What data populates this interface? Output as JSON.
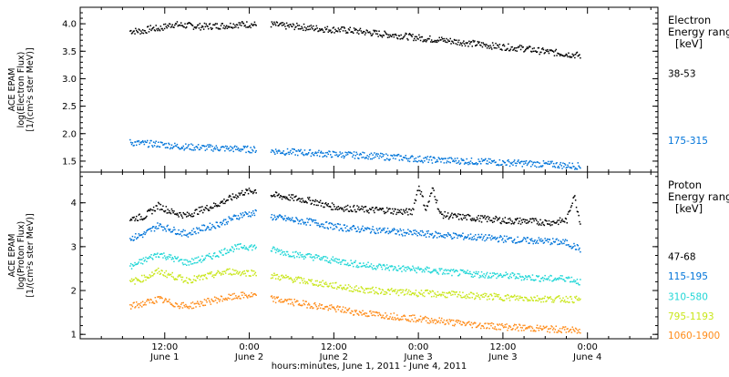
{
  "xaxis": {
    "title": "hours:minutes, June  1, 2011 - June  4, 2011",
    "ticks": [
      {
        "t": 12,
        "time": "12:00",
        "day": "June 1"
      },
      {
        "t": 24,
        "time": "0:00",
        "day": "June 2"
      },
      {
        "t": 36,
        "time": "12:00",
        "day": "June 2"
      },
      {
        "t": 48,
        "time": "0:00",
        "day": "June 3"
      },
      {
        "t": 60,
        "time": "12:00",
        "day": "June 3"
      },
      {
        "t": 72,
        "time": "0:00",
        "day": "June 4"
      }
    ],
    "range_hours": [
      0,
      82
    ]
  },
  "chart_data": [
    {
      "type": "scatter",
      "ylabel_lines": [
        "ACE EPAM",
        "log(Electron Flux)",
        "[1/(cm²s ster MeV)]"
      ],
      "ylim": [
        1.3,
        4.3
      ],
      "yticks": [
        "1.5",
        "2.0",
        "2.5",
        "3.0",
        "3.5",
        "4.0"
      ],
      "legend": {
        "title": [
          "Electron",
          "Energy range",
          "[keV]"
        ]
      },
      "series": [
        {
          "name": "38-53",
          "color": "#000000",
          "label_y": 3.1,
          "points": [
            [
              7,
              3.88
            ],
            [
              9,
              3.88
            ],
            [
              10,
              3.93
            ],
            [
              11,
              3.92
            ],
            [
              13,
              4.0
            ],
            [
              15,
              3.98
            ],
            [
              17,
              3.96
            ],
            [
              19,
              3.97
            ],
            [
              21,
              3.98
            ],
            [
              22,
              4.0
            ],
            [
              24,
              4.0
            ],
            [
              25,
              3.99
            ],
            [
              27,
              4.0
            ],
            [
              29,
              3.97
            ],
            [
              31,
              3.96
            ],
            [
              33,
              3.93
            ],
            [
              35,
              3.91
            ],
            [
              37,
              3.9
            ],
            [
              39,
              3.88
            ],
            [
              41,
              3.85
            ],
            [
              43,
              3.82
            ],
            [
              45,
              3.8
            ],
            [
              47,
              3.77
            ],
            [
              49,
              3.74
            ],
            [
              51,
              3.72
            ],
            [
              53,
              3.69
            ],
            [
              55,
              3.66
            ],
            [
              57,
              3.63
            ],
            [
              59,
              3.6
            ],
            [
              61,
              3.58
            ],
            [
              63,
              3.56
            ],
            [
              65,
              3.52
            ],
            [
              67,
              3.49
            ],
            [
              69,
              3.46
            ],
            [
              71,
              3.43
            ]
          ],
          "gap": [
            25.3,
            26.7
          ]
        },
        {
          "name": "175-315",
          "color": "#0074d9",
          "label_y": 1.88,
          "points": [
            [
              7,
              1.85
            ],
            [
              9,
              1.83
            ],
            [
              11,
              1.82
            ],
            [
              13,
              1.79
            ],
            [
              15,
              1.77
            ],
            [
              17,
              1.76
            ],
            [
              19,
              1.75
            ],
            [
              21,
              1.74
            ],
            [
              23,
              1.73
            ],
            [
              25,
              1.72
            ],
            [
              27,
              1.7
            ],
            [
              29,
              1.68
            ],
            [
              31,
              1.67
            ],
            [
              33,
              1.66
            ],
            [
              35,
              1.64
            ],
            [
              37,
              1.63
            ],
            [
              39,
              1.62
            ],
            [
              41,
              1.61
            ],
            [
              43,
              1.59
            ],
            [
              45,
              1.58
            ],
            [
              47,
              1.56
            ],
            [
              49,
              1.54
            ],
            [
              51,
              1.53
            ],
            [
              53,
              1.52
            ],
            [
              55,
              1.51
            ],
            [
              57,
              1.5
            ],
            [
              59,
              1.49
            ],
            [
              61,
              1.48
            ],
            [
              63,
              1.47
            ],
            [
              65,
              1.46
            ],
            [
              67,
              1.45
            ],
            [
              69,
              1.43
            ],
            [
              71,
              1.42
            ]
          ],
          "gap": [
            25.3,
            26.7
          ]
        }
      ]
    },
    {
      "type": "scatter",
      "ylabel_lines": [
        "ACE EPAM",
        "log(Proton Flux)",
        "[1/(cm²s ster MeV)]"
      ],
      "ylim": [
        0.9,
        4.7
      ],
      "yticks": [
        "1",
        "2",
        "3",
        "4"
      ],
      "legend": {
        "title": [
          "Proton",
          "Energy range",
          "[keV]"
        ]
      },
      "series": [
        {
          "name": "47-68",
          "color": "#000000",
          "label_y": 2.78,
          "points": [
            [
              7,
              3.65
            ],
            [
              9,
              3.7
            ],
            [
              11,
              3.95
            ],
            [
              13,
              3.8
            ],
            [
              15,
              3.72
            ],
            [
              17,
              3.85
            ],
            [
              19,
              3.95
            ],
            [
              21,
              4.1
            ],
            [
              23,
              4.25
            ],
            [
              25,
              4.3
            ],
            [
              27,
              4.2
            ],
            [
              29,
              4.15
            ],
            [
              31,
              4.1
            ],
            [
              33,
              4.05
            ],
            [
              35,
              3.95
            ],
            [
              37,
              3.9
            ],
            [
              39,
              3.88
            ],
            [
              41,
              3.85
            ],
            [
              43,
              3.85
            ],
            [
              45,
              3.82
            ],
            [
              47,
              3.8
            ],
            [
              48,
              4.4
            ],
            [
              49,
              3.85
            ],
            [
              50,
              4.35
            ],
            [
              51,
              3.75
            ],
            [
              53,
              3.7
            ],
            [
              55,
              3.68
            ],
            [
              57,
              3.65
            ],
            [
              59,
              3.63
            ],
            [
              61,
              3.6
            ],
            [
              63,
              3.6
            ],
            [
              65,
              3.58
            ],
            [
              67,
              3.57
            ],
            [
              69,
              3.62
            ],
            [
              70,
              4.2
            ],
            [
              71,
              3.5
            ]
          ],
          "gap": [
            25.3,
            26.7
          ]
        },
        {
          "name": "115-195",
          "color": "#0074d9",
          "label_y": 2.33,
          "points": [
            [
              7,
              3.2
            ],
            [
              9,
              3.3
            ],
            [
              11,
              3.5
            ],
            [
              13,
              3.4
            ],
            [
              15,
              3.3
            ],
            [
              17,
              3.42
            ],
            [
              19,
              3.5
            ],
            [
              21,
              3.62
            ],
            [
              23,
              3.75
            ],
            [
              25,
              3.78
            ],
            [
              27,
              3.7
            ],
            [
              29,
              3.65
            ],
            [
              31,
              3.6
            ],
            [
              33,
              3.57
            ],
            [
              35,
              3.5
            ],
            [
              37,
              3.45
            ],
            [
              39,
              3.42
            ],
            [
              41,
              3.4
            ],
            [
              43,
              3.38
            ],
            [
              45,
              3.35
            ],
            [
              47,
              3.32
            ],
            [
              49,
              3.3
            ],
            [
              51,
              3.28
            ],
            [
              53,
              3.26
            ],
            [
              55,
              3.24
            ],
            [
              57,
              3.22
            ],
            [
              59,
              3.2
            ],
            [
              61,
              3.18
            ],
            [
              63,
              3.15
            ],
            [
              65,
              3.15
            ],
            [
              67,
              3.13
            ],
            [
              69,
              3.1
            ],
            [
              71,
              2.95
            ]
          ],
          "gap": [
            25.3,
            26.7
          ]
        },
        {
          "name": "310-580",
          "color": "#1fd6d6",
          "label_y": 1.87,
          "points": [
            [
              7,
              2.55
            ],
            [
              9,
              2.7
            ],
            [
              11,
              2.85
            ],
            [
              13,
              2.75
            ],
            [
              15,
              2.65
            ],
            [
              17,
              2.72
            ],
            [
              19,
              2.82
            ],
            [
              21,
              2.95
            ],
            [
              23,
              3.02
            ],
            [
              25,
              3.0
            ],
            [
              27,
              2.95
            ],
            [
              29,
              2.88
            ],
            [
              31,
              2.82
            ],
            [
              33,
              2.78
            ],
            [
              35,
              2.72
            ],
            [
              37,
              2.68
            ],
            [
              39,
              2.62
            ],
            [
              41,
              2.58
            ],
            [
              43,
              2.55
            ],
            [
              45,
              2.52
            ],
            [
              47,
              2.5
            ],
            [
              49,
              2.48
            ],
            [
              51,
              2.45
            ],
            [
              53,
              2.42
            ],
            [
              55,
              2.4
            ],
            [
              57,
              2.38
            ],
            [
              59,
              2.36
            ],
            [
              61,
              2.35
            ],
            [
              63,
              2.32
            ],
            [
              65,
              2.3
            ],
            [
              67,
              2.28
            ],
            [
              69,
              2.3
            ],
            [
              71,
              2.2
            ]
          ],
          "gap": [
            25.3,
            26.7
          ]
        },
        {
          "name": "795-1193",
          "color": "#c9e619",
          "label_y": 1.42,
          "points": [
            [
              7,
              2.2
            ],
            [
              9,
              2.3
            ],
            [
              11,
              2.45
            ],
            [
              13,
              2.35
            ],
            [
              15,
              2.25
            ],
            [
              17,
              2.3
            ],
            [
              19,
              2.38
            ],
            [
              21,
              2.45
            ],
            [
              23,
              2.42
            ],
            [
              25,
              2.42
            ],
            [
              27,
              2.35
            ],
            [
              29,
              2.3
            ],
            [
              31,
              2.25
            ],
            [
              33,
              2.2
            ],
            [
              35,
              2.15
            ],
            [
              37,
              2.1
            ],
            [
              39,
              2.05
            ],
            [
              41,
              2.02
            ],
            [
              43,
              2.0
            ],
            [
              45,
              1.98
            ],
            [
              47,
              1.96
            ],
            [
              49,
              1.95
            ],
            [
              51,
              1.93
            ],
            [
              53,
              1.92
            ],
            [
              55,
              1.9
            ],
            [
              57,
              1.88
            ],
            [
              59,
              1.87
            ],
            [
              61,
              1.85
            ],
            [
              63,
              1.84
            ],
            [
              65,
              1.83
            ],
            [
              67,
              1.82
            ],
            [
              69,
              1.82
            ],
            [
              71,
              1.8
            ]
          ],
          "gap": [
            25.3,
            26.7
          ]
        },
        {
          "name": "1060-1900",
          "color": "#ff8c1a",
          "label_y": 0.98,
          "points": [
            [
              7,
              1.65
            ],
            [
              9,
              1.72
            ],
            [
              11,
              1.82
            ],
            [
              13,
              1.72
            ],
            [
              15,
              1.65
            ],
            [
              17,
              1.72
            ],
            [
              19,
              1.8
            ],
            [
              21,
              1.85
            ],
            [
              23,
              1.9
            ],
            [
              25,
              1.9
            ],
            [
              27,
              1.82
            ],
            [
              29,
              1.78
            ],
            [
              31,
              1.72
            ],
            [
              33,
              1.68
            ],
            [
              35,
              1.62
            ],
            [
              37,
              1.58
            ],
            [
              39,
              1.52
            ],
            [
              41,
              1.48
            ],
            [
              43,
              1.45
            ],
            [
              45,
              1.42
            ],
            [
              47,
              1.38
            ],
            [
              49,
              1.35
            ],
            [
              51,
              1.32
            ],
            [
              53,
              1.28
            ],
            [
              55,
              1.25
            ],
            [
              57,
              1.22
            ],
            [
              59,
              1.2
            ],
            [
              61,
              1.18
            ],
            [
              63,
              1.16
            ],
            [
              65,
              1.15
            ],
            [
              67,
              1.13
            ],
            [
              69,
              1.12
            ],
            [
              71,
              1.08
            ]
          ],
          "gap": [
            25.3,
            26.7
          ]
        }
      ]
    }
  ]
}
